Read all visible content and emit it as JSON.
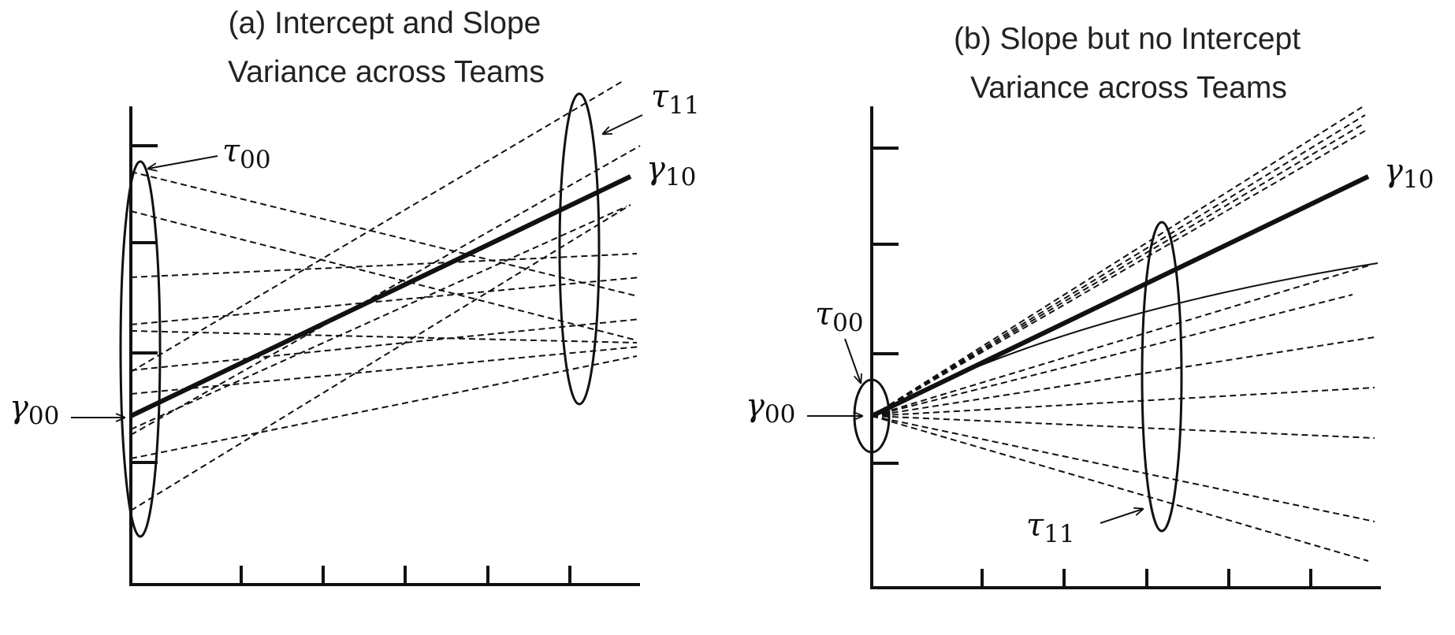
{
  "panels": [
    {
      "title_line1": "(a) Intercept and Slope",
      "title_line2": "Variance across Teams",
      "labels": {
        "tau00": {
          "sym": "τ",
          "sub": "00"
        },
        "tau11": {
          "sym": "τ",
          "sub": "11"
        },
        "gamma10": {
          "sym": "γ",
          "sub": "10"
        },
        "gamma00": {
          "sym": "γ",
          "sub": "00"
        }
      }
    },
    {
      "title_line1": "(b) Slope but no Intercept",
      "title_line2": "Variance across Teams",
      "labels": {
        "tau00": {
          "sym": "τ",
          "sub": "00"
        },
        "tau11": {
          "sym": "τ",
          "sub": "11"
        },
        "gamma10": {
          "sym": "γ",
          "sub": "10"
        },
        "gamma00": {
          "sym": "γ",
          "sub": "00"
        }
      }
    }
  ],
  "colors": {
    "ink": "#111111",
    "title": "#222222",
    "background": "#ffffff"
  }
}
